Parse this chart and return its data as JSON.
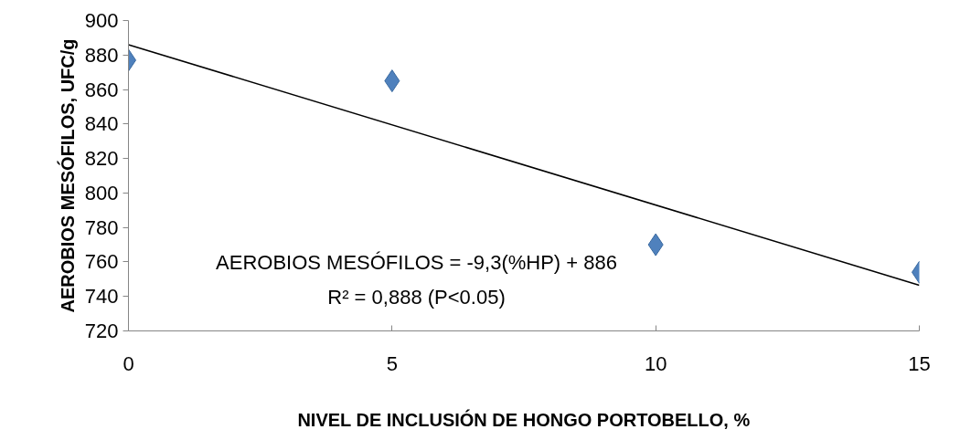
{
  "chart_data": {
    "type": "scatter",
    "xlabel": "NIVEL DE INCLUSIÓN DE HONGO PORTOBELLO, %",
    "ylabel": "AEROBIOS MESÓFILOS, UFC/g",
    "x": [
      0,
      5,
      10,
      15
    ],
    "series": [
      {
        "color": "#4f81bd",
        "values": [
          877,
          865,
          770,
          754
        ],
        "marker": "diamond"
      },
      {
        "type": "line",
        "color": "#000000",
        "x": [
          0,
          15
        ],
        "values": [
          886,
          746.5
        ],
        "line_style": "solid"
      }
    ],
    "xlim": [
      0,
      15
    ],
    "xticks": [
      0,
      5,
      10,
      15
    ],
    "ylim": [
      720,
      900
    ],
    "yticks": [
      720,
      740,
      760,
      780,
      800,
      820,
      840,
      860,
      880,
      900
    ],
    "grid": false,
    "annotations": [
      "AEROBIOS MESÓFILOS = -9,3(%HP) + 886",
      "R² = 0,888 (P<0.05)"
    ]
  }
}
